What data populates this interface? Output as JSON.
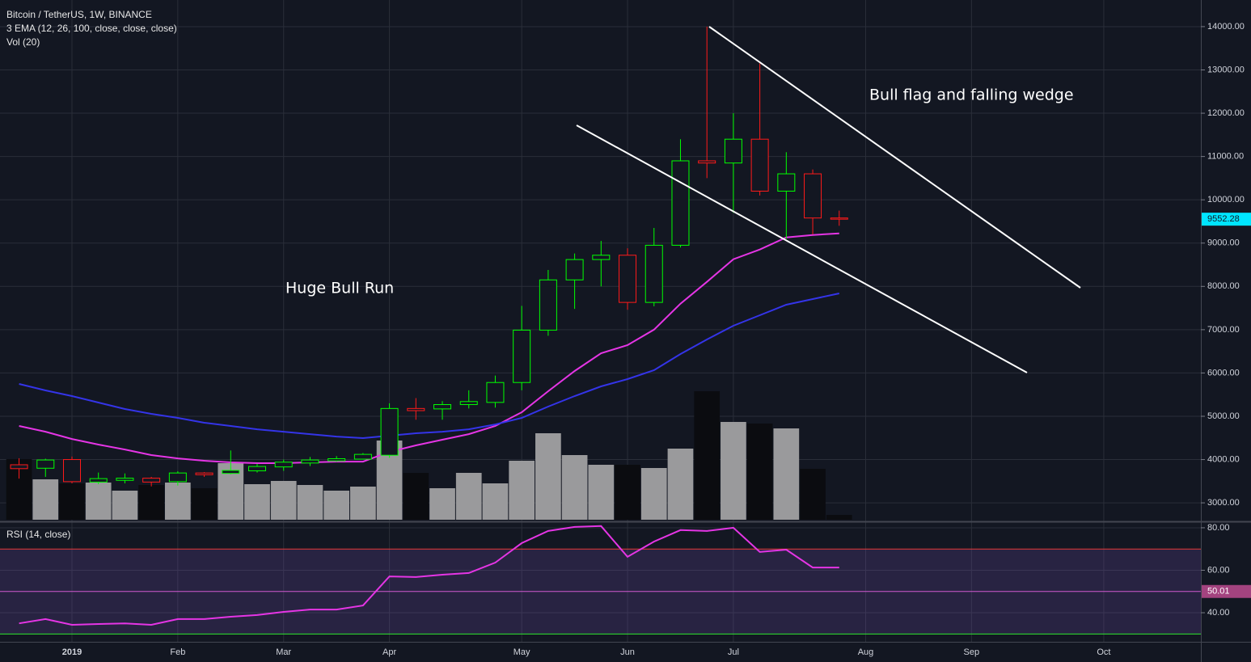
{
  "chart_data": [
    {
      "type": "candlestick",
      "title": "Bitcoin / TetherUS, 1W, BINANCE",
      "subtitles": [
        "3 EMA (12, 26, 100, close, close, close)",
        "Vol (20)"
      ],
      "annotations": [
        "Huge Bull Run",
        "Bull flag and falling wedge"
      ],
      "open": [
        3880,
        3800,
        4000,
        3480,
        3520,
        3570,
        3490,
        3690,
        3680,
        3740,
        3830,
        3920,
        3970,
        4010,
        4100,
        5180,
        5170,
        5270,
        5320,
        5780,
        6990,
        8150,
        8620,
        8720,
        7630,
        8950,
        10900,
        10850,
        11400,
        10200,
        10600,
        9580
      ],
      "high": [
        4030,
        4020,
        4070,
        3700,
        3680,
        3600,
        3730,
        3710,
        4210,
        3900,
        4000,
        4060,
        4080,
        4150,
        5300,
        5420,
        5350,
        5600,
        5940,
        7550,
        8380,
        8760,
        9050,
        8880,
        9350,
        11400,
        14000,
        12000,
        13150,
        11100,
        10700,
        9750
      ],
      "low": [
        3560,
        3600,
        3450,
        3430,
        3450,
        3380,
        3400,
        3600,
        3660,
        3700,
        3740,
        3850,
        3950,
        4000,
        4040,
        4920,
        4920,
        5180,
        5200,
        5600,
        6860,
        7480,
        8000,
        7460,
        7540,
        8900,
        10500,
        9700,
        10100,
        9100,
        9200,
        9400
      ],
      "close": [
        3790,
        3990,
        3490,
        3560,
        3570,
        3480,
        3690,
        3650,
        3750,
        3840,
        3940,
        3990,
        4020,
        4120,
        5180,
        5130,
        5270,
        5340,
        5780,
        6990,
        8150,
        8620,
        8720,
        7630,
        8950,
        10900,
        10850,
        11400,
        10200,
        10600,
        9580,
        9552.28
      ],
      "up_color": "#00ff00",
      "down_color": "#ff1a1a",
      "last_price_color": "#00e5ff",
      "series": [
        {
          "color": "#e535e5",
          "values": [
            4775,
            4644,
            4476,
            4346,
            4233,
            4103,
            4028,
            3972,
            3935,
            3916,
            3916,
            3935,
            3953,
            3953,
            4177,
            4327,
            4458,
            4588,
            4775,
            5093,
            5579,
            6046,
            6457,
            6643,
            7002,
            7600,
            8104,
            8627,
            8851,
            9131,
            9188,
            9225
          ]
        },
        {
          "color": "#3434e8",
          "values": [
            5746,
            5597,
            5466,
            5317,
            5168,
            5056,
            4962,
            4850,
            4775,
            4700,
            4644,
            4588,
            4532,
            4495,
            4551,
            4607,
            4644,
            4700,
            4812,
            4962,
            5224,
            5466,
            5690,
            5858,
            6064,
            6437,
            6774,
            7091,
            7334,
            7576,
            7707,
            7838
          ]
        }
      ],
      "volume": [
        75,
        50,
        45,
        46,
        36,
        43,
        46,
        39,
        70,
        44,
        48,
        43,
        36,
        41,
        98,
        58,
        39,
        58,
        45,
        73,
        107,
        80,
        68,
        68,
        64,
        88,
        159,
        121,
        119,
        113,
        63,
        6
      ],
      "volume_ylim": [
        0,
        643
      ],
      "volume_up_color": "#9a9a9c",
      "volume_down_color": "#0b0c10",
      "xlim": [
        -0.72,
        44.67
      ],
      "xticks": [
        {
          "value": 2,
          "label": "2019"
        },
        {
          "value": 6,
          "label": "Feb"
        },
        {
          "value": 10,
          "label": "Mar"
        },
        {
          "value": 14,
          "label": "Apr"
        },
        {
          "value": 19,
          "label": "May"
        },
        {
          "value": 23,
          "label": "Jun"
        },
        {
          "value": 27,
          "label": "Jul"
        },
        {
          "value": 32,
          "label": "Aug"
        },
        {
          "value": 36,
          "label": "Sep"
        },
        {
          "value": 41,
          "label": "Oct"
        }
      ],
      "ylim": [
        2610,
        14615
      ],
      "yticks": [
        {
          "value": 14000,
          "label": "14000.00"
        },
        {
          "value": 13000,
          "label": "13000.00"
        },
        {
          "value": 12000,
          "label": "12000.00"
        },
        {
          "value": 11000,
          "label": "11000.00"
        },
        {
          "value": 10000,
          "label": "10000.00"
        },
        {
          "value": 9000,
          "label": "9000.00"
        },
        {
          "value": 8000,
          "label": "8000.00"
        },
        {
          "value": 7000,
          "label": "7000.00"
        },
        {
          "value": 6000,
          "label": "6000.00"
        },
        {
          "value": 5000,
          "label": "5000.00"
        },
        {
          "value": 4000,
          "label": "4000.00"
        },
        {
          "value": 3000,
          "label": "3000.00"
        }
      ],
      "grid": true
    },
    {
      "type": "line",
      "title": "RSI (14, close)",
      "series": [
        {
          "color": "#e535e5",
          "values": [
            35.0,
            37.0,
            34.3,
            34.7,
            35.0,
            34.3,
            37.0,
            37.0,
            38.1,
            38.9,
            40.4,
            41.5,
            41.5,
            43.4,
            57.1,
            56.8,
            57.9,
            58.7,
            63.6,
            72.8,
            78.5,
            80.4,
            80.8,
            66.3,
            73.5,
            78.9,
            78.5,
            80.0,
            68.6,
            69.7,
            61.3,
            61.3
          ]
        }
      ],
      "levels": [
        {
          "value": 70,
          "color": "#e53935"
        },
        {
          "value": 50,
          "color": "#d05bd0"
        },
        {
          "value": 30,
          "color": "#2ee62e"
        }
      ],
      "band_color": "#7e57c2",
      "marker": {
        "value": 50.01,
        "label": "50.01",
        "color": "#a3437f"
      },
      "ylim": [
        26.7,
        81.5
      ],
      "yticks": [
        {
          "value": 80,
          "label": "80.00"
        },
        {
          "value": 60,
          "label": "60.00"
        },
        {
          "value": 40,
          "label": "40.00"
        }
      ],
      "grid": true
    }
  ]
}
